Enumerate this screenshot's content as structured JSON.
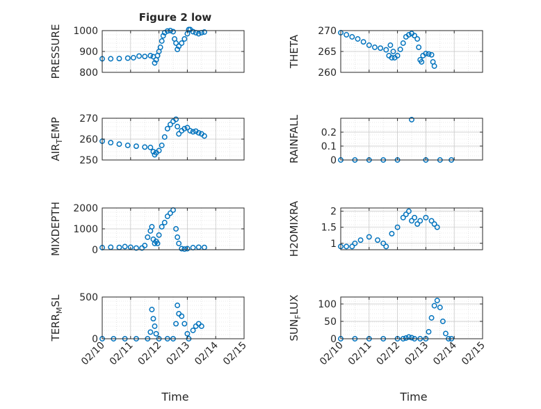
{
  "figure": {
    "title": "Figure 2 low",
    "xlabel": "Time"
  },
  "chart_data": [
    {
      "type": "scatter",
      "ylabel": "PRESSURE",
      "ylim": [
        800,
        1000
      ],
      "yticks": [
        "800",
        "900",
        "1000"
      ],
      "xlim": [
        0,
        5
      ],
      "xticks": [
        "02/10",
        "02/11",
        "02/12",
        "02/13",
        "02/14",
        "02/15"
      ],
      "show_xticklabels": false,
      "grid": true,
      "pts": [
        [
          0,
          865
        ],
        [
          0.3,
          865
        ],
        [
          0.6,
          866
        ],
        [
          0.9,
          868
        ],
        [
          1.1,
          870
        ],
        [
          1.3,
          878
        ],
        [
          1.5,
          876
        ],
        [
          1.7,
          880
        ],
        [
          1.8,
          875
        ],
        [
          1.85,
          845
        ],
        [
          1.9,
          860
        ],
        [
          1.95,
          880
        ],
        [
          2.0,
          900
        ],
        [
          2.05,
          920
        ],
        [
          2.1,
          950
        ],
        [
          2.15,
          975
        ],
        [
          2.2,
          990
        ],
        [
          2.3,
          998
        ],
        [
          2.4,
          1000
        ],
        [
          2.5,
          995
        ],
        [
          2.55,
          960
        ],
        [
          2.6,
          940
        ],
        [
          2.65,
          910
        ],
        [
          2.7,
          925
        ],
        [
          2.8,
          940
        ],
        [
          2.9,
          960
        ],
        [
          3.0,
          985
        ],
        [
          3.05,
          1005
        ],
        [
          3.1,
          1005
        ],
        [
          3.2,
          995
        ],
        [
          3.3,
          990
        ],
        [
          3.4,
          985
        ],
        [
          3.5,
          990
        ],
        [
          3.6,
          993
        ]
      ]
    },
    {
      "type": "scatter",
      "ylabel": "THETA",
      "ylim": [
        260,
        270
      ],
      "yticks": [
        "260",
        "265",
        "270"
      ],
      "xlim": [
        0,
        5
      ],
      "xticks": [
        "02/10",
        "02/11",
        "02/12",
        "02/13",
        "02/14",
        "02/15"
      ],
      "show_xticklabels": false,
      "grid": true,
      "pts": [
        [
          0,
          269.5
        ],
        [
          0.2,
          269
        ],
        [
          0.4,
          268.5
        ],
        [
          0.6,
          268
        ],
        [
          0.8,
          267.3
        ],
        [
          1.0,
          266.5
        ],
        [
          1.2,
          266
        ],
        [
          1.4,
          265.8
        ],
        [
          1.6,
          265.4
        ],
        [
          1.7,
          264
        ],
        [
          1.75,
          266.5
        ],
        [
          1.8,
          263.5
        ],
        [
          1.85,
          265
        ],
        [
          1.9,
          263.5
        ],
        [
          2.0,
          264
        ],
        [
          2.1,
          265.5
        ],
        [
          2.2,
          267
        ],
        [
          2.3,
          268.5
        ],
        [
          2.4,
          269
        ],
        [
          2.5,
          269.3
        ],
        [
          2.6,
          268.8
        ],
        [
          2.7,
          268
        ],
        [
          2.75,
          266
        ],
        [
          2.8,
          263
        ],
        [
          2.85,
          262.5
        ],
        [
          2.9,
          264
        ],
        [
          3.0,
          264.5
        ],
        [
          3.1,
          264.4
        ],
        [
          3.2,
          264.2
        ],
        [
          3.25,
          262.5
        ],
        [
          3.3,
          261.5
        ]
      ]
    },
    {
      "type": "scatter",
      "ylabel": "AIR_TEMP",
      "ylim": [
        250,
        270
      ],
      "yticks": [
        "250",
        "260",
        "270"
      ],
      "xlim": [
        0,
        5
      ],
      "xticks": [
        "02/10",
        "02/11",
        "02/12",
        "02/13",
        "02/14",
        "02/15"
      ],
      "show_xticklabels": false,
      "grid": true,
      "pts": [
        [
          0,
          259
        ],
        [
          0.3,
          258.3
        ],
        [
          0.6,
          257.6
        ],
        [
          0.9,
          257
        ],
        [
          1.2,
          256.6
        ],
        [
          1.5,
          256.2
        ],
        [
          1.7,
          256
        ],
        [
          1.8,
          254
        ],
        [
          1.85,
          252.5
        ],
        [
          1.9,
          253.5
        ],
        [
          2.0,
          254.5
        ],
        [
          2.1,
          257
        ],
        [
          2.2,
          261
        ],
        [
          2.3,
          265
        ],
        [
          2.4,
          267
        ],
        [
          2.5,
          268.5
        ],
        [
          2.6,
          269.5
        ],
        [
          2.65,
          266
        ],
        [
          2.7,
          262.5
        ],
        [
          2.8,
          264
        ],
        [
          2.9,
          265
        ],
        [
          3.0,
          265.5
        ],
        [
          3.1,
          264
        ],
        [
          3.2,
          263.5
        ],
        [
          3.3,
          263.8
        ],
        [
          3.4,
          263
        ],
        [
          3.5,
          262.5
        ],
        [
          3.6,
          261.5
        ]
      ]
    },
    {
      "type": "scatter",
      "ylabel": "RAINFALL",
      "ylim": [
        0,
        0.3
      ],
      "yticks": [
        "0",
        "0.1",
        "0.2"
      ],
      "ytick_values": [
        0,
        0.1,
        0.2
      ],
      "xlim": [
        0,
        5
      ],
      "xticks": [
        "02/10",
        "02/11",
        "02/12",
        "02/13",
        "02/14",
        "02/15"
      ],
      "show_xticklabels": false,
      "grid": true,
      "pts": [
        [
          0,
          0
        ],
        [
          0.5,
          0
        ],
        [
          1.0,
          0
        ],
        [
          1.5,
          0
        ],
        [
          2.0,
          0
        ],
        [
          2.5,
          0.29
        ],
        [
          3.0,
          0
        ],
        [
          3.5,
          0
        ],
        [
          3.9,
          0
        ]
      ]
    },
    {
      "type": "scatter",
      "ylabel": "MIXDEPTH",
      "ylim": [
        0,
        2000
      ],
      "yticks": [
        "0",
        "1000",
        "2000"
      ],
      "xlim": [
        0,
        5
      ],
      "xticks": [
        "02/10",
        "02/11",
        "02/12",
        "02/13",
        "02/14",
        "02/15"
      ],
      "show_xticklabels": false,
      "grid": true,
      "pts": [
        [
          0,
          100
        ],
        [
          0.3,
          120
        ],
        [
          0.6,
          110
        ],
        [
          0.8,
          150
        ],
        [
          1.0,
          120
        ],
        [
          1.2,
          80
        ],
        [
          1.4,
          80
        ],
        [
          1.5,
          200
        ],
        [
          1.6,
          600
        ],
        [
          1.7,
          900
        ],
        [
          1.75,
          1100
        ],
        [
          1.8,
          500
        ],
        [
          1.85,
          300
        ],
        [
          1.9,
          400
        ],
        [
          1.95,
          300
        ],
        [
          2.0,
          700
        ],
        [
          2.1,
          1100
        ],
        [
          2.2,
          1300
        ],
        [
          2.3,
          1600
        ],
        [
          2.4,
          1750
        ],
        [
          2.5,
          1900
        ],
        [
          2.6,
          1000
        ],
        [
          2.65,
          600
        ],
        [
          2.7,
          300
        ],
        [
          2.8,
          50
        ],
        [
          2.9,
          30
        ],
        [
          3.0,
          50
        ],
        [
          3.2,
          100
        ],
        [
          3.4,
          120
        ],
        [
          3.6,
          110
        ]
      ]
    },
    {
      "type": "scatter",
      "ylabel": "H2OMIXRA",
      "ylim": [
        0.8,
        2.1
      ],
      "yticks": [
        "1",
        "1.5",
        "2"
      ],
      "ytick_values": [
        1,
        1.5,
        2
      ],
      "xlim": [
        0,
        5
      ],
      "xticks": [
        "02/10",
        "02/11",
        "02/12",
        "02/13",
        "02/14",
        "02/15"
      ],
      "show_xticklabels": false,
      "grid": true,
      "pts": [
        [
          0,
          0.9
        ],
        [
          0.2,
          0.9
        ],
        [
          0.4,
          0.9
        ],
        [
          0.5,
          1.0
        ],
        [
          0.7,
          1.1
        ],
        [
          1.0,
          1.2
        ],
        [
          1.3,
          1.1
        ],
        [
          1.5,
          1.0
        ],
        [
          1.6,
          0.9
        ],
        [
          1.8,
          1.3
        ],
        [
          2.0,
          1.5
        ],
        [
          2.2,
          1.8
        ],
        [
          2.3,
          1.9
        ],
        [
          2.4,
          2.0
        ],
        [
          2.5,
          1.7
        ],
        [
          2.6,
          1.8
        ],
        [
          2.7,
          1.6
        ],
        [
          2.8,
          1.7
        ],
        [
          3.0,
          1.8
        ],
        [
          3.2,
          1.7
        ],
        [
          3.3,
          1.6
        ],
        [
          3.4,
          1.5
        ]
      ]
    },
    {
      "type": "scatter",
      "ylabel": "TERR_MSL",
      "ylim": [
        0,
        500
      ],
      "yticks": [
        "0",
        "500"
      ],
      "xlim": [
        0,
        5
      ],
      "xticks": [
        "02/10",
        "02/11",
        "02/12",
        "02/13",
        "02/14",
        "02/15"
      ],
      "show_xticklabels": true,
      "grid": true,
      "pts": [
        [
          0,
          0
        ],
        [
          0.4,
          0
        ],
        [
          0.8,
          0
        ],
        [
          1.2,
          0
        ],
        [
          1.6,
          0
        ],
        [
          1.7,
          80
        ],
        [
          1.75,
          350
        ],
        [
          1.8,
          240
        ],
        [
          1.85,
          150
        ],
        [
          1.9,
          60
        ],
        [
          2.0,
          0
        ],
        [
          2.3,
          0
        ],
        [
          2.5,
          0
        ],
        [
          2.6,
          180
        ],
        [
          2.65,
          400
        ],
        [
          2.7,
          300
        ],
        [
          2.8,
          270
        ],
        [
          2.9,
          180
        ],
        [
          3.0,
          60
        ],
        [
          3.05,
          0
        ],
        [
          3.2,
          100
        ],
        [
          3.3,
          150
        ],
        [
          3.4,
          180
        ],
        [
          3.5,
          150
        ]
      ]
    },
    {
      "type": "scatter",
      "ylabel": "SUN_FLUX",
      "ylim": [
        0,
        120
      ],
      "yticks": [
        "0",
        "50",
        "100"
      ],
      "xlim": [
        0,
        5
      ],
      "xticks": [
        "02/10",
        "02/11",
        "02/12",
        "02/13",
        "02/14",
        "02/15"
      ],
      "show_xticklabels": true,
      "grid": true,
      "pts": [
        [
          0,
          0
        ],
        [
          0.5,
          0
        ],
        [
          1.0,
          0
        ],
        [
          1.5,
          0
        ],
        [
          2.0,
          0
        ],
        [
          2.2,
          0
        ],
        [
          2.3,
          2
        ],
        [
          2.4,
          5
        ],
        [
          2.5,
          3
        ],
        [
          2.6,
          0
        ],
        [
          2.8,
          0
        ],
        [
          3.0,
          0
        ],
        [
          3.1,
          20
        ],
        [
          3.2,
          60
        ],
        [
          3.3,
          95
        ],
        [
          3.4,
          110
        ],
        [
          3.5,
          90
        ],
        [
          3.6,
          50
        ],
        [
          3.7,
          15
        ],
        [
          3.8,
          0
        ],
        [
          3.9,
          0
        ]
      ]
    }
  ]
}
